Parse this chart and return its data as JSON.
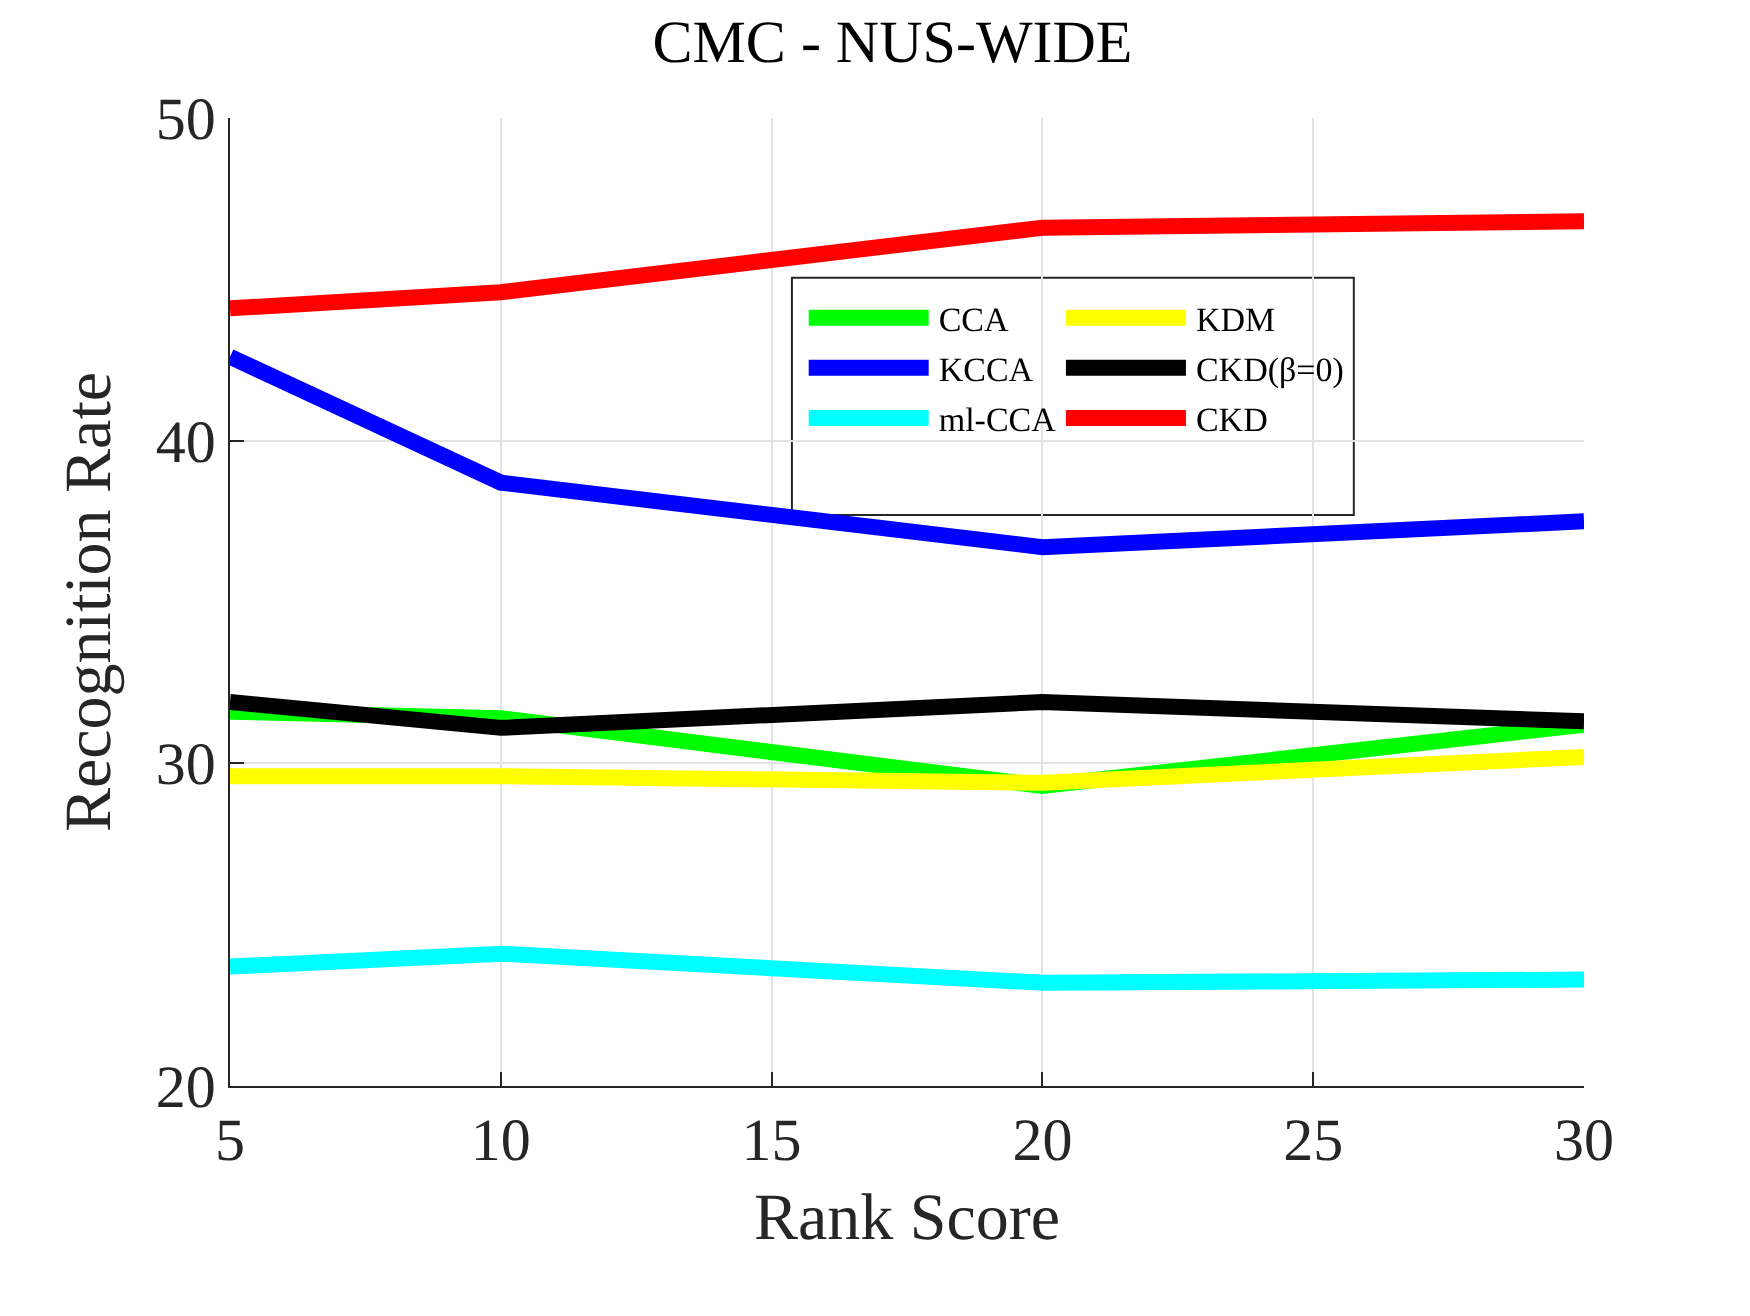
{
  "chart_data": {
    "type": "line",
    "title": "CMC - NUS-WIDE",
    "xlabel": "Rank Score",
    "ylabel": "Recognition Rate",
    "x": [
      5,
      10,
      20,
      30
    ],
    "series": [
      {
        "name": "CCA",
        "color": "#00ff00",
        "values": [
          31.6,
          31.4,
          29.3,
          31.2
        ]
      },
      {
        "name": "KCCA",
        "color": "#0000ff",
        "values": [
          42.6,
          38.7,
          36.7,
          37.5
        ]
      },
      {
        "name": "ml-CCA",
        "color": "#00ffff",
        "values": [
          23.7,
          24.1,
          23.2,
          23.3
        ]
      },
      {
        "name": "KDM",
        "color": "#ffff00",
        "values": [
          29.6,
          29.6,
          29.4,
          30.2
        ]
      },
      {
        "name": "CKD(β=0)",
        "color": "#000000",
        "values": [
          31.9,
          31.1,
          31.9,
          31.3
        ]
      },
      {
        "name": "CKD",
        "color": "#ff0000",
        "values": [
          44.1,
          44.6,
          46.6,
          46.8
        ]
      }
    ],
    "xlim": [
      5,
      30
    ],
    "xticks": [
      5,
      10,
      15,
      20,
      25,
      30
    ],
    "ylim": [
      20,
      50
    ],
    "yticks": [
      20,
      30,
      40,
      50
    ],
    "grid": true,
    "legend": "top right",
    "marker": "none",
    "line_style": "solid"
  }
}
